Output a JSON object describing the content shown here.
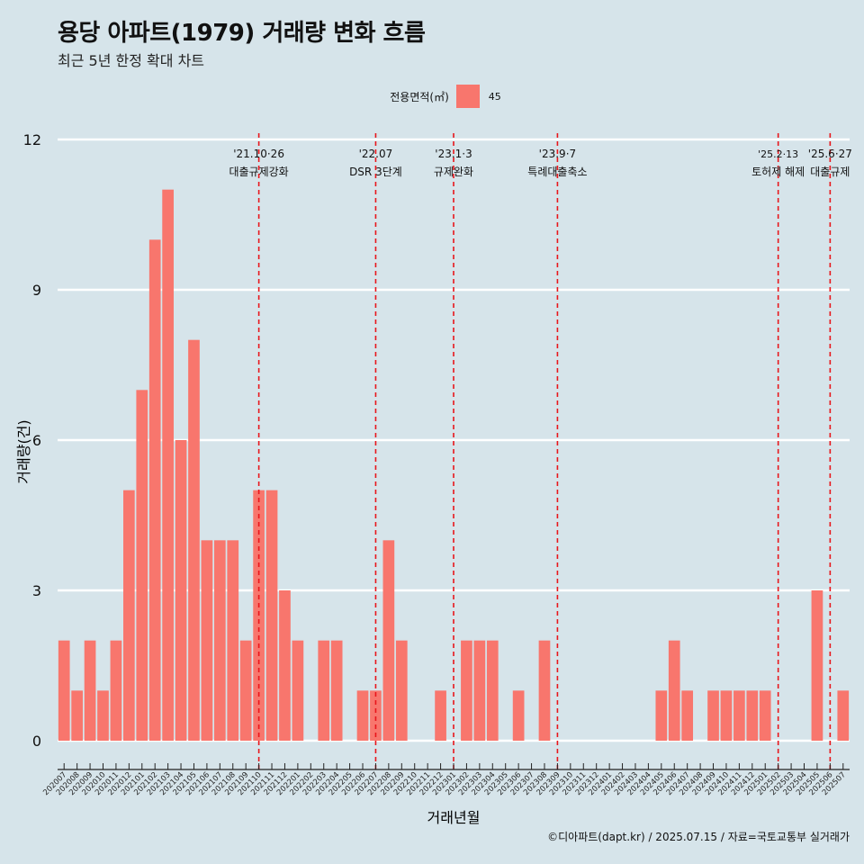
{
  "header": {
    "title": "용당 아파트(1979) 거래량 변화 흐름",
    "subtitle": "최근 5년 한정 확대 차트"
  },
  "legend": {
    "title": "전용면적(㎡)",
    "label": "45",
    "color": "#f8766d"
  },
  "caption": "©디아파트(dapt.kr) / 2025.07.15 / 자료=국토교통부 실거래가",
  "chart_data": {
    "type": "bar",
    "title": "용당 아파트(1979) 거래량 변화 흐름",
    "subtitle": "최근 5년 한정 확대 차트",
    "xlabel": "거래년월",
    "ylabel": "거래량(건)",
    "ylim": [
      0,
      12
    ],
    "yticks": [
      0,
      3,
      6,
      9,
      12
    ],
    "grid": true,
    "legend_position": "top",
    "bar_color": "#f8766d",
    "background": "#d6e4ea",
    "categories": [
      "202007",
      "202008",
      "202009",
      "202010",
      "202011",
      "202012",
      "202101",
      "202102",
      "202103",
      "202104",
      "202105",
      "202106",
      "202107",
      "202108",
      "202109",
      "202110",
      "202111",
      "202112",
      "202201",
      "202202",
      "202203",
      "202204",
      "202205",
      "202206",
      "202207",
      "202208",
      "202209",
      "202210",
      "202211",
      "202212",
      "202301",
      "202302",
      "202303",
      "202304",
      "202305",
      "202306",
      "202307",
      "202308",
      "202309",
      "202310",
      "202311",
      "202312",
      "202401",
      "202402",
      "202403",
      "202404",
      "202405",
      "202406",
      "202407",
      "202408",
      "202409",
      "202410",
      "202411",
      "202412",
      "202501",
      "202502",
      "202503",
      "202504",
      "202505",
      "202506",
      "202507"
    ],
    "series": [
      {
        "name": "45",
        "values": [
          2,
          1,
          2,
          1,
          2,
          5,
          7,
          10,
          11,
          6,
          8,
          4,
          4,
          4,
          2,
          5,
          5,
          3,
          2,
          0,
          2,
          2,
          0,
          1,
          1,
          4,
          2,
          0,
          0,
          1,
          0,
          2,
          2,
          2,
          0,
          1,
          0,
          2,
          0,
          0,
          0,
          0,
          0,
          0,
          0,
          0,
          1,
          2,
          1,
          0,
          1,
          1,
          1,
          1,
          1,
          0,
          0,
          0,
          3,
          0,
          1
        ]
      }
    ],
    "annotations": [
      {
        "at": "202110",
        "date": "'21.10·26",
        "text": "대출규제강화"
      },
      {
        "at": "202207",
        "date": "'22.07",
        "text": "DSR 3단계"
      },
      {
        "at": "202301",
        "date": "'23.1·3",
        "text": "규제완화"
      },
      {
        "at": "202309",
        "date": "'23.9·7",
        "text": "특례대출축소"
      },
      {
        "at": "202502",
        "date": "'25.2·13",
        "text": "토허제 해제"
      },
      {
        "at": "202506",
        "date": "'25.6·27",
        "text": "대출규제"
      }
    ]
  }
}
